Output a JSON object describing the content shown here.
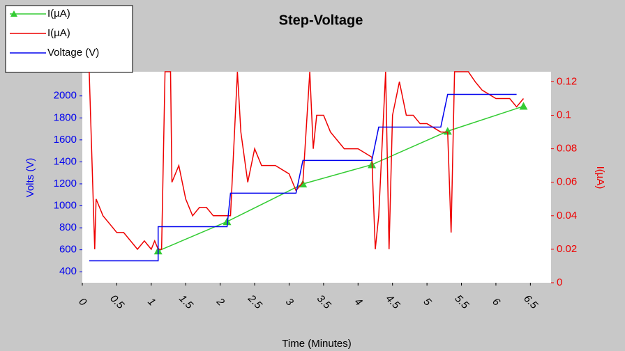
{
  "chart_data": {
    "type": "line",
    "title": "Step-Voltage",
    "xlabel": "Time (Minutes)",
    "ylabel": "Volts (V)",
    "y2label": "I(µA)",
    "xlim": [
      0,
      6.8
    ],
    "xticks": [
      0,
      0.5,
      1,
      1.5,
      2,
      2.5,
      3,
      3.5,
      4,
      4.5,
      5,
      5.5,
      6,
      6.5
    ],
    "ylim": [
      300,
      2220
    ],
    "yticks": [
      400,
      600,
      800,
      1000,
      1200,
      1400,
      1600,
      1800,
      2000
    ],
    "y2lim": [
      0,
      0.126
    ],
    "y2ticks": [
      0,
      0.02,
      0.04,
      0.06,
      0.08,
      0.1,
      0.12
    ],
    "legend": "top-left",
    "series": [
      {
        "name": "I(µA)",
        "color": "#33cc33",
        "axis": "y2",
        "marker": "triangle",
        "x": [
          1.1,
          2.1,
          3.2,
          4.2,
          5.3,
          6.4
        ],
        "values": [
          0.019,
          0.0365,
          0.059,
          0.0705,
          0.0905,
          0.1054
        ]
      },
      {
        "name": "I(µA)",
        "color": "#ee0000",
        "axis": "y2",
        "x": [
          0.1,
          0.15,
          0.18,
          0.2,
          0.3,
          0.4,
          0.5,
          0.6,
          0.7,
          0.8,
          0.9,
          1.0,
          1.05,
          1.1,
          1.15,
          1.2,
          1.28,
          1.3,
          1.4,
          1.5,
          1.6,
          1.7,
          1.8,
          1.9,
          2.0,
          2.1,
          2.15,
          2.25,
          2.3,
          2.4,
          2.5,
          2.6,
          2.8,
          3.0,
          3.1,
          3.2,
          3.3,
          3.35,
          3.4,
          3.5,
          3.6,
          3.7,
          3.8,
          4.0,
          4.2,
          4.25,
          4.3,
          4.4,
          4.45,
          4.5,
          4.6,
          4.7,
          4.8,
          4.9,
          5.0,
          5.2,
          5.3,
          5.35,
          5.4,
          5.6,
          5.7,
          5.8,
          6.0,
          6.2,
          6.3,
          6.4
        ],
        "values": [
          0.126,
          0.06,
          0.02,
          0.05,
          0.04,
          0.035,
          0.03,
          0.03,
          0.025,
          0.02,
          0.025,
          0.02,
          0.025,
          0.02,
          0.02,
          0.126,
          0.126,
          0.06,
          0.07,
          0.05,
          0.04,
          0.045,
          0.045,
          0.04,
          0.04,
          0.04,
          0.04,
          0.126,
          0.09,
          0.06,
          0.08,
          0.07,
          0.07,
          0.065,
          0.055,
          0.06,
          0.126,
          0.08,
          0.1,
          0.1,
          0.09,
          0.085,
          0.08,
          0.08,
          0.075,
          0.02,
          0.04,
          0.126,
          0.02,
          0.1,
          0.12,
          0.1,
          0.1,
          0.095,
          0.095,
          0.09,
          0.09,
          0.03,
          0.126,
          0.126,
          0.12,
          0.115,
          0.11,
          0.11,
          0.105,
          0.11
        ]
      },
      {
        "name": "Voltage (V)",
        "color": "#0000ee",
        "axis": "y",
        "x": [
          0.1,
          1.1,
          1.1,
          2.1,
          2.15,
          3.1,
          3.2,
          4.2,
          4.3,
          5.2,
          5.3,
          6.3
        ],
        "values": [
          500,
          500,
          810,
          810,
          1115,
          1115,
          1413,
          1413,
          1716,
          1716,
          2014,
          2014
        ]
      }
    ]
  }
}
